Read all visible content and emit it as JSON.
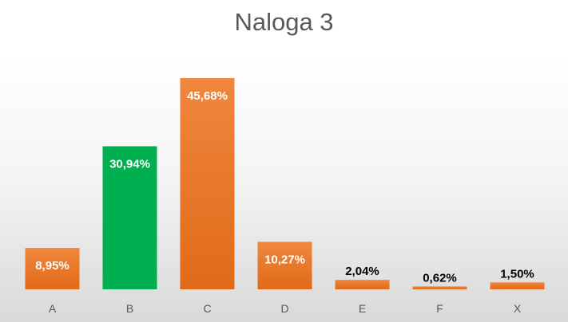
{
  "chart_data": {
    "type": "bar",
    "title": "Naloga 3",
    "categories": [
      "A",
      "B",
      "C",
      "D",
      "E",
      "F",
      "X"
    ],
    "values": [
      8.95,
      30.94,
      45.68,
      10.27,
      2.04,
      0.62,
      1.5
    ],
    "data_labels": [
      "8,95%",
      "30,94%",
      "45,68%",
      "10,27%",
      "2,04%",
      "0,62%",
      "1,50%"
    ],
    "highlight_index": 1,
    "colors": {
      "default": "#ED7D31",
      "highlight": "#00B050"
    },
    "ylim": [
      0,
      50
    ],
    "grid": false,
    "legend": "none",
    "xlabel": "",
    "ylabel": ""
  }
}
